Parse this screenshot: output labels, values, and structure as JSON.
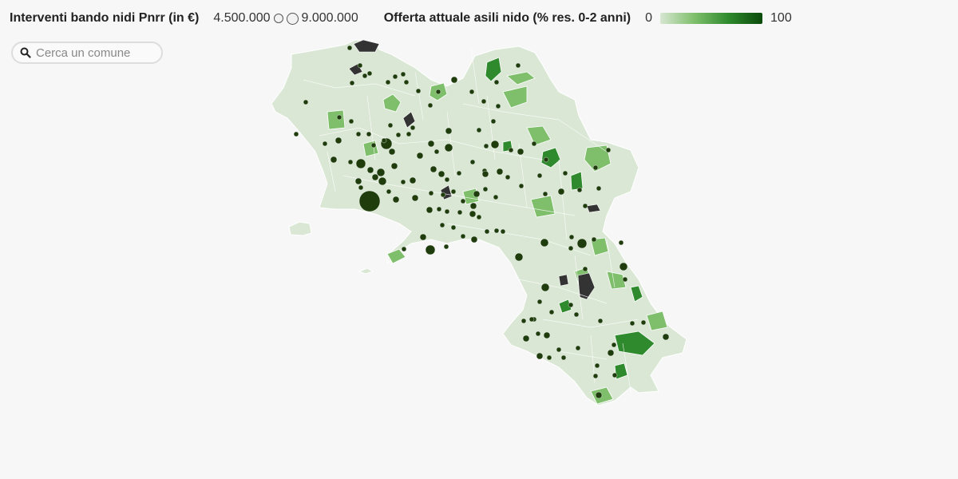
{
  "legend": {
    "bubble_title": "Interventi bando nidi Pnrr (in €)",
    "bubble_min_label": "4.500.000",
    "bubble_max_label": "9.000.000",
    "bubble_min_value": 4500000,
    "bubble_max_value": 9000000,
    "color_title": "Offerta attuale asili nido (% res. 0-2 anni)",
    "color_min_label": "0",
    "color_max_label": "100",
    "color_scale": [
      "#d7e6d2",
      "#7fbf6c",
      "#2f8a2d",
      "#0b4a0b"
    ]
  },
  "search": {
    "placeholder": "Cerca un comune",
    "icon": "search-icon"
  },
  "map": {
    "region": "Campania",
    "bubble_color": "#1f3d0c",
    "no_data_color": "#333333"
  }
}
